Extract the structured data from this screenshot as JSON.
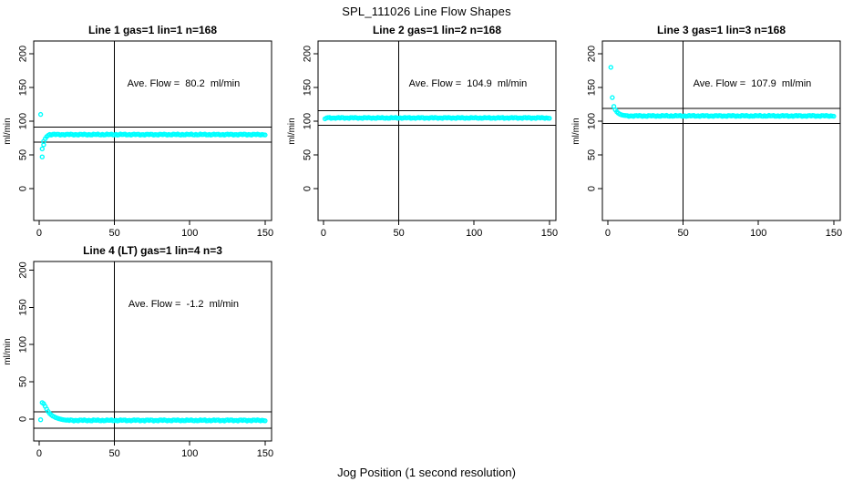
{
  "page": {
    "main_title": "SPL_111026  Line Flow Shapes",
    "x_axis_label": "Jog Position (1 second resolution)",
    "colors": {
      "data_marker": "#00FFFF",
      "axis_line": "#000000",
      "background": "#FFFFFF"
    }
  },
  "chart_data": [
    {
      "type": "scatter",
      "title": "Line 1 gas=1 lin=1 n=168",
      "annotation": "Ave. Flow =  80.2  ml/min",
      "ave_flow_ml_min": 80.2,
      "ylab": "ml/min",
      "xticks": [
        0,
        50,
        100,
        150
      ],
      "yticks": [
        0,
        50,
        100,
        150,
        200
      ],
      "xlim": [
        -3.6,
        154.3
      ],
      "ylim": [
        -47.3,
        219.0
      ],
      "vline_x": 50,
      "ref_lines": [
        91.2,
        69.2
      ],
      "head_points": [
        [
          1,
          110
        ],
        [
          2,
          47
        ],
        [
          2,
          59
        ],
        [
          3,
          65
        ],
        [
          3,
          70
        ],
        [
          4,
          74
        ],
        [
          5,
          77
        ],
        [
          6,
          79
        ]
      ],
      "steady": {
        "from": 7,
        "to": 150,
        "value": 80.2
      },
      "grid": false
    },
    {
      "type": "scatter",
      "title": "Line 2 gas=1 lin=2 n=168",
      "annotation": "Ave. Flow =  104.9  ml/min",
      "ave_flow_ml_min": 104.9,
      "ylab": "ml/min",
      "xticks": [
        0,
        50,
        100,
        150
      ],
      "yticks": [
        0,
        50,
        100,
        150,
        200
      ],
      "xlim": [
        -3.6,
        154.3
      ],
      "ylim": [
        -47.3,
        219.0
      ],
      "vline_x": 50,
      "ref_lines": [
        115.9,
        93.9
      ],
      "head_points": [
        [
          1,
          103.5
        ]
      ],
      "steady": {
        "from": 2,
        "to": 150,
        "value": 104.9
      },
      "grid": false
    },
    {
      "type": "scatter",
      "title": "Line 3 gas=1 lin=3 n=168",
      "annotation": "Ave. Flow =  107.9  ml/min",
      "ave_flow_ml_min": 107.9,
      "ylab": "ml/min",
      "xticks": [
        0,
        50,
        100,
        150
      ],
      "yticks": [
        0,
        50,
        100,
        150,
        200
      ],
      "xlim": [
        -3.6,
        154.3
      ],
      "ylim": [
        -47.3,
        219.0
      ],
      "vline_x": 50,
      "ref_lines": [
        118.9,
        96.9
      ],
      "head_points": [
        [
          2,
          180
        ],
        [
          3,
          135
        ],
        [
          4,
          122
        ],
        [
          5,
          117
        ],
        [
          6,
          114
        ],
        [
          7,
          112
        ],
        [
          8,
          110.5
        ],
        [
          9,
          109.5
        ],
        [
          10,
          109
        ],
        [
          11,
          108.5
        ]
      ],
      "steady": {
        "from": 12,
        "to": 150,
        "value": 107.9
      },
      "grid": false
    },
    {
      "type": "scatter",
      "title": "Line 4 (LT) gas=1 lin=4 n=3",
      "annotation": "Ave. Flow =  -1.2  ml/min",
      "ave_flow_ml_min": -1.2,
      "ylab": "ml/min",
      "xticks": [
        0,
        50,
        100,
        150
      ],
      "yticks": [
        0,
        50,
        100,
        150,
        200
      ],
      "xlim": [
        -3.6,
        154.3
      ],
      "ylim": [
        -29.5,
        211.5
      ],
      "vline_x": 50,
      "ref_lines": [
        9.8,
        -12.2
      ],
      "head_points": [
        [
          1,
          -1
        ],
        [
          2,
          22
        ],
        [
          3,
          20.5
        ],
        [
          4,
          17
        ],
        [
          5,
          13.5
        ],
        [
          6,
          10
        ],
        [
          7,
          7.5
        ],
        [
          8,
          5.5
        ],
        [
          9,
          4
        ],
        [
          10,
          3
        ],
        [
          11,
          2
        ],
        [
          12,
          1.2
        ],
        [
          13,
          0.5
        ],
        [
          14,
          0
        ],
        [
          15,
          -0.5
        ],
        [
          16,
          -1
        ],
        [
          17,
          -1.3
        ],
        [
          18,
          -1.6
        ]
      ],
      "steady": {
        "from": 19,
        "to": 150,
        "value": -1.8
      },
      "grid": false
    }
  ]
}
